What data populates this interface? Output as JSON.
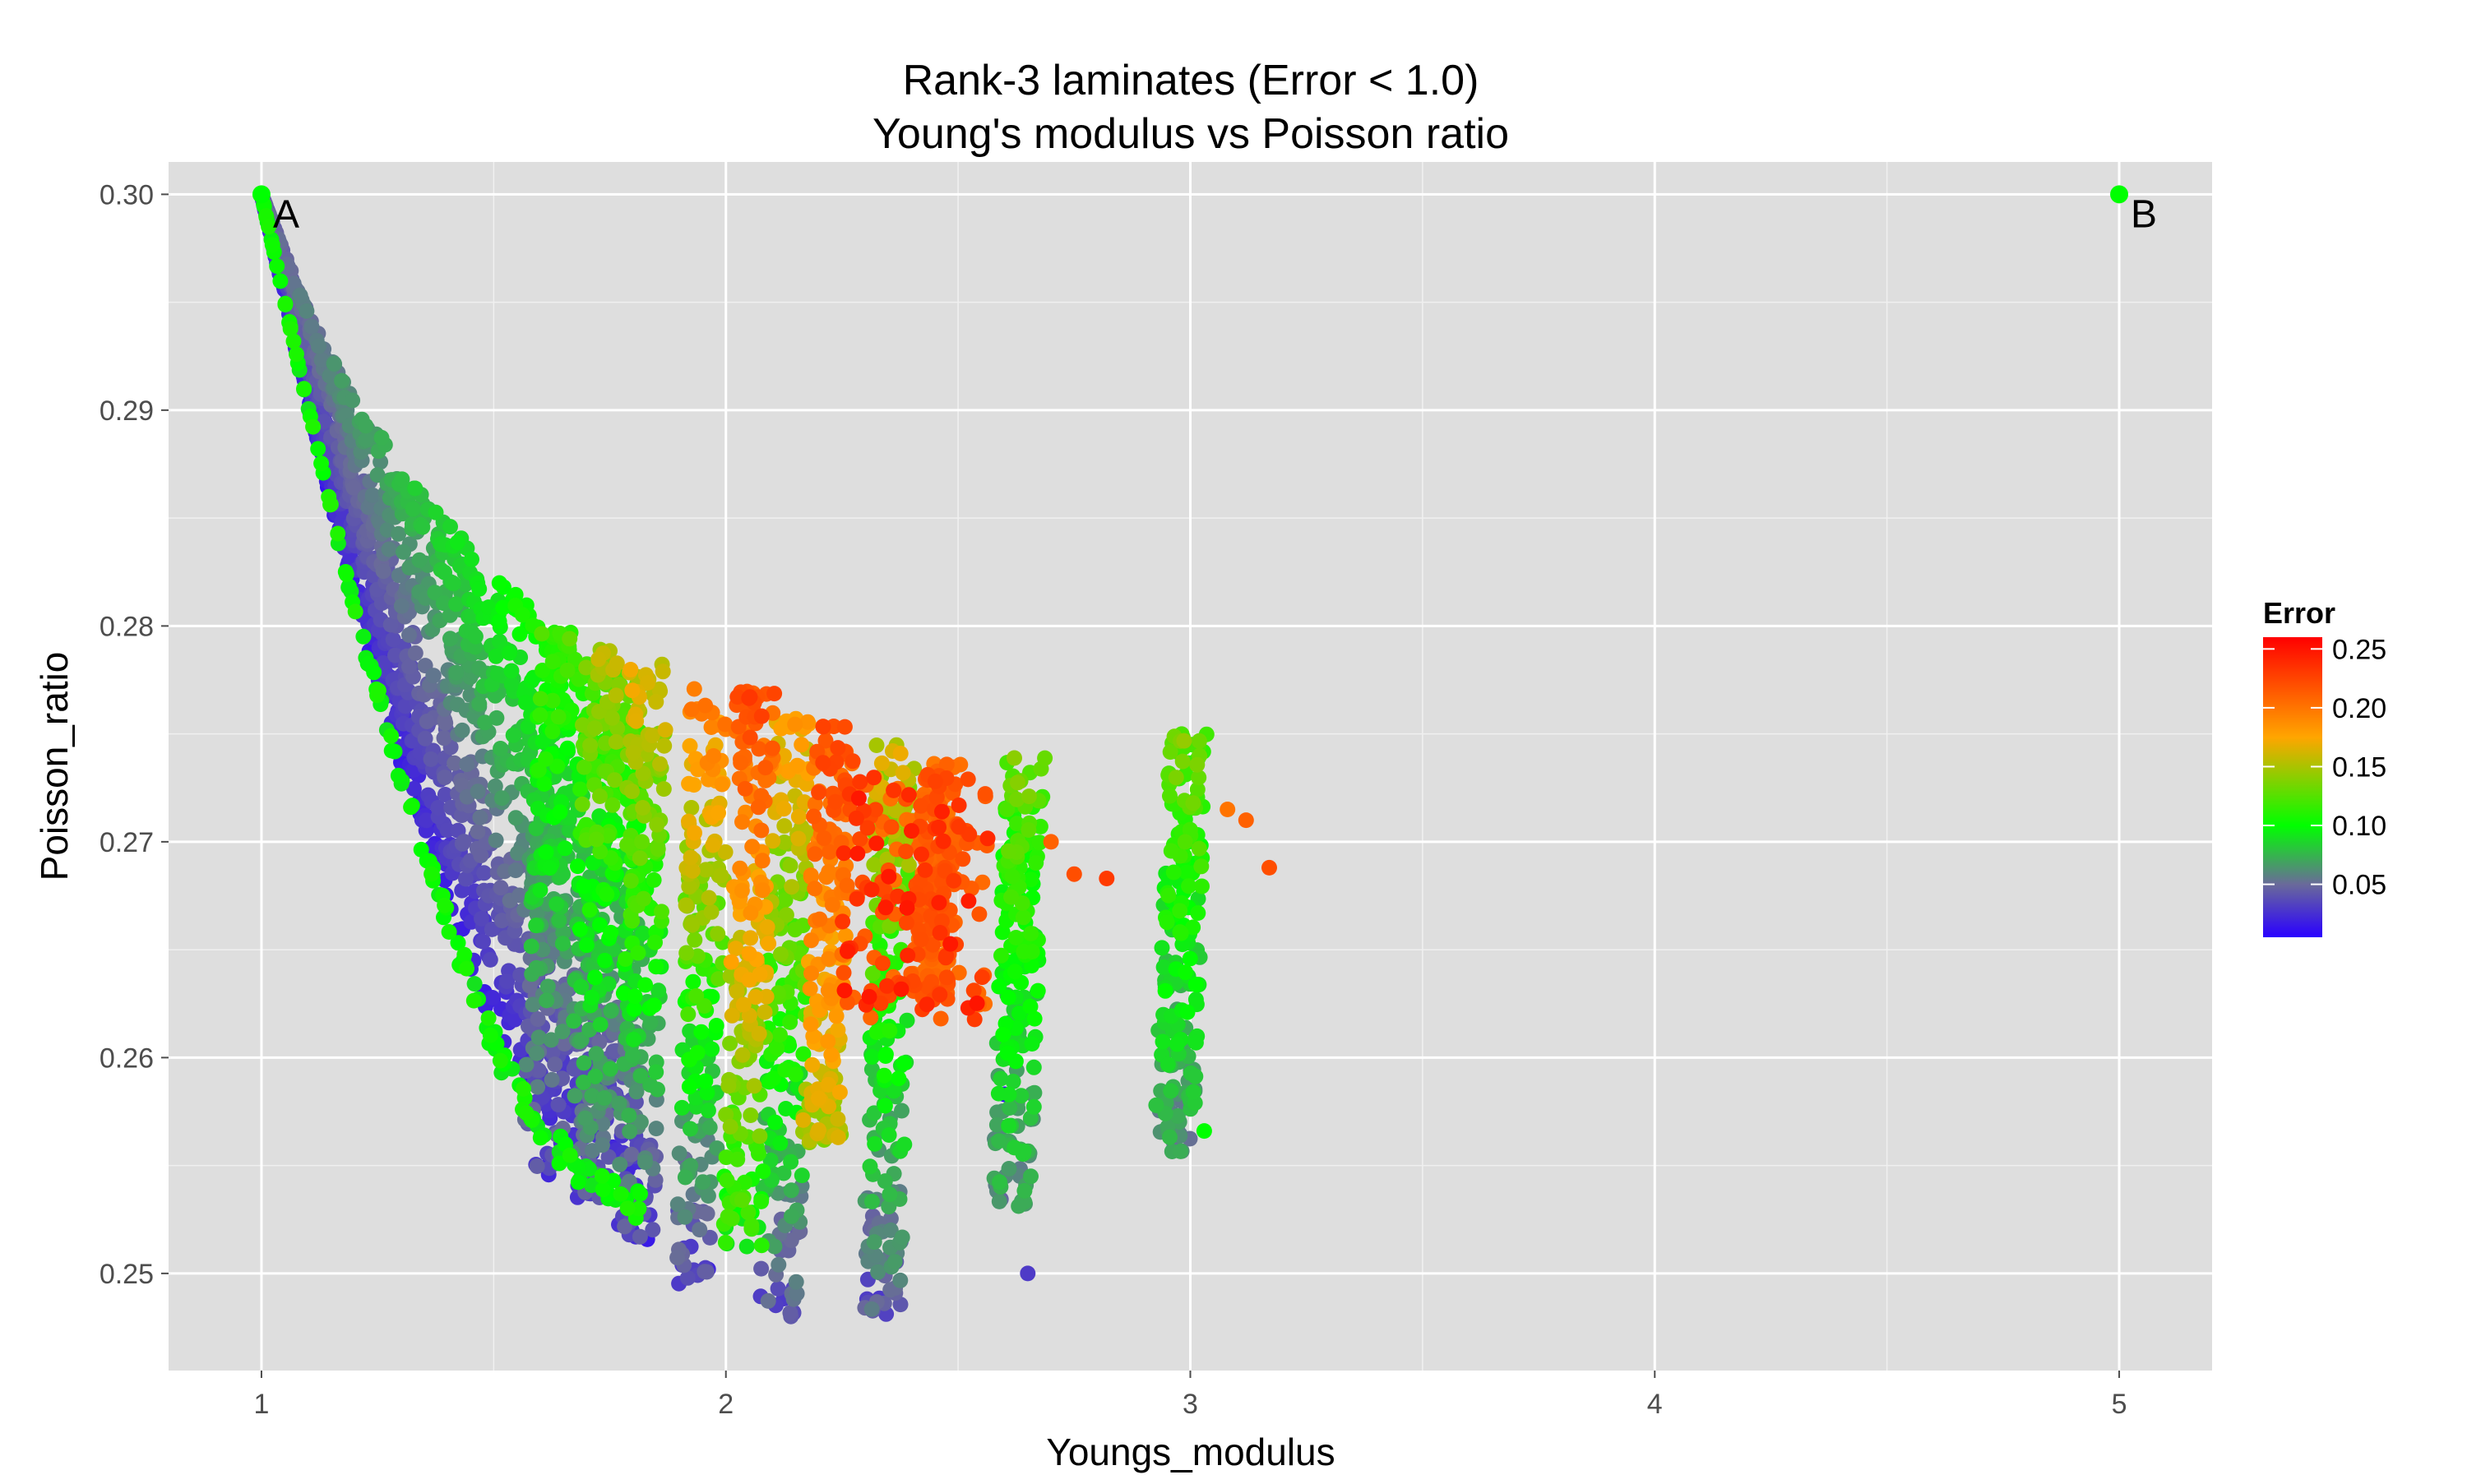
{
  "chart_data": {
    "type": "scatter",
    "title": "Rank-3 laminates (Error < 1.0)",
    "subtitle": "Young's modulus vs Poisson ratio",
    "xlabel": "Youngs_modulus",
    "ylabel": "Poisson_ratio",
    "xlim": [
      0.8,
      5.2
    ],
    "ylim": [
      0.2455,
      0.3015
    ],
    "x_ticks": [
      1,
      2,
      3,
      4,
      5
    ],
    "x_tick_labels": [
      "1",
      "2",
      "3",
      "4",
      "5"
    ],
    "y_ticks": [
      0.25,
      0.26,
      0.27,
      0.28,
      0.29,
      0.3
    ],
    "y_tick_labels": [
      "0.25",
      "0.26",
      "0.27",
      "0.28",
      "0.29",
      "0.30"
    ],
    "grid": true,
    "legend": {
      "title": "Error",
      "position": "right",
      "type": "colorbar",
      "min": 0.005,
      "max": 0.26,
      "ticks": [
        0.05,
        0.1,
        0.15,
        0.2,
        0.25
      ],
      "tick_labels": [
        "0.05",
        "0.10",
        "0.15",
        "0.20",
        "0.25"
      ],
      "colors": [
        "#2a00ff",
        "#6a6a9a",
        "#00ff00",
        "#ffa500",
        "#ff0000"
      ],
      "color_stops": [
        0.005,
        0.05,
        0.1,
        0.175,
        0.26
      ]
    },
    "annotations": [
      {
        "label": "A",
        "x": 1.0,
        "y": 0.3,
        "color": "#00ff00"
      },
      {
        "label": "B",
        "x": 5.0,
        "y": 0.3,
        "color": "#00ff00"
      }
    ],
    "envelope": {
      "description_free_region": false,
      "curve": [
        [
          1.0,
          0.3
        ],
        [
          1.1,
          0.2945
        ],
        [
          1.2,
          0.2905
        ],
        [
          1.3,
          0.2875
        ],
        [
          1.4,
          0.2848
        ],
        [
          1.5,
          0.2825
        ],
        [
          1.6,
          0.2805
        ],
        [
          1.7,
          0.2788
        ],
        [
          1.8,
          0.2778
        ],
        [
          1.9,
          0.277
        ],
        [
          2.0,
          0.2765
        ]
      ],
      "lower_edge": [
        [
          1.0,
          0.3
        ],
        [
          1.1,
          0.29
        ],
        [
          1.2,
          0.2805
        ],
        [
          1.3,
          0.2725
        ],
        [
          1.4,
          0.2658
        ],
        [
          1.5,
          0.26
        ],
        [
          1.6,
          0.2558
        ],
        [
          1.7,
          0.2538
        ],
        [
          1.8,
          0.2525
        ]
      ]
    },
    "clusters": [
      {
        "x": 1.62,
        "y_top": 0.28,
        "y_bottom": 0.2545,
        "err_top": 0.12,
        "err_bottom": 0.03
      },
      {
        "x": 1.72,
        "y_top": 0.279,
        "y_bottom": 0.2535,
        "err_top": 0.15,
        "err_bottom": 0.04
      },
      {
        "x": 1.82,
        "y_top": 0.2785,
        "y_bottom": 0.2515,
        "err_top": 0.17,
        "err_bottom": 0.03
      },
      {
        "x": 1.95,
        "y_top": 0.2772,
        "y_bottom": 0.2495,
        "err_top": 0.2,
        "err_bottom": 0.03
      },
      {
        "x": 2.05,
        "y_top": 0.277,
        "y_bottom": 0.251,
        "err_top": 0.22,
        "err_bottom": 0.1
      },
      {
        "x": 2.13,
        "y_top": 0.2758,
        "y_bottom": 0.248,
        "err_top": 0.18,
        "err_bottom": 0.04
      },
      {
        "x": 2.22,
        "y_top": 0.2755,
        "y_bottom": 0.256,
        "err_top": 0.22,
        "err_bottom": 0.15
      },
      {
        "x": 2.35,
        "y_top": 0.2745,
        "y_bottom": 0.248,
        "err_top": 0.16,
        "err_bottom": 0.04
      },
      {
        "x": 2.45,
        "y_top": 0.2738,
        "y_bottom": 0.2625,
        "err_top": 0.21,
        "err_bottom": 0.21
      },
      {
        "x": 2.63,
        "y_top": 0.274,
        "y_bottom": 0.253,
        "err_top": 0.13,
        "err_bottom": 0.06
      },
      {
        "x": 2.98,
        "y_top": 0.275,
        "y_bottom": 0.2555,
        "err_top": 0.13,
        "err_bottom": 0.06
      }
    ],
    "outliers": [
      {
        "x": 2.7,
        "y": 0.27,
        "error": 0.21
      },
      {
        "x": 2.75,
        "y": 0.2685,
        "error": 0.22
      },
      {
        "x": 2.82,
        "y": 0.2683,
        "error": 0.23
      },
      {
        "x": 2.65,
        "y": 0.25,
        "error": 0.03
      },
      {
        "x": 2.6,
        "y": 0.2583,
        "error": 0.01
      },
      {
        "x": 3.08,
        "y": 0.2715,
        "error": 0.2
      },
      {
        "x": 3.12,
        "y": 0.271,
        "error": 0.21
      },
      {
        "x": 3.17,
        "y": 0.2688,
        "error": 0.22
      },
      {
        "x": 3.03,
        "y": 0.2566,
        "error": 0.1
      }
    ]
  }
}
